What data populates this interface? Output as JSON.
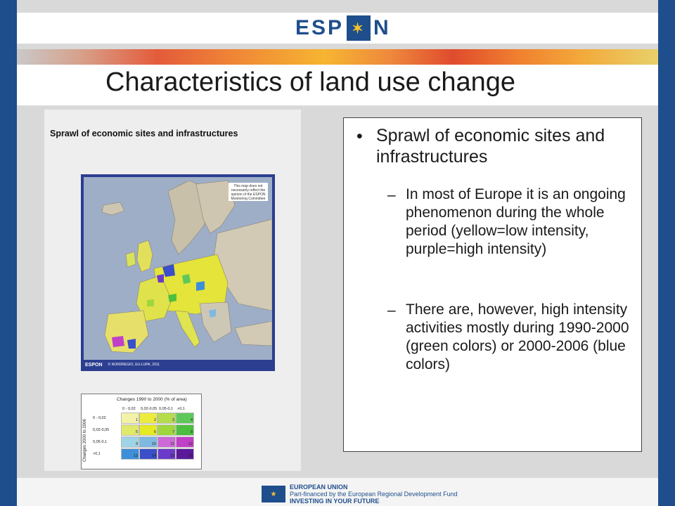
{
  "header": {
    "logo_left": "ESP",
    "logo_right": "N",
    "logo_icon": "eu-stars-icon"
  },
  "slide": {
    "title": "Characteristics of land use change"
  },
  "map_image": {
    "title": "Sprawl of economic sites and infrastructures",
    "note": "This map does not necessarily reflect the opinion of the ESPON Monitoring Committee",
    "logo": "ESPON",
    "credit": "© NORDREGIO, EU-LUPA, 2011",
    "legend": {
      "col_title": "Changes 1990 to 2000 (% of area)",
      "row_title": "Changes 2000 to 2006",
      "col_headers": [
        "0 - 0,02",
        "0,02-0,05",
        "0,05-0,1",
        ">0,1"
      ],
      "row_headers": [
        "0 - 0,02",
        "0,02-0,05",
        "0,05-0,1",
        ">0,1"
      ],
      "cells": [
        [
          "1",
          "2",
          "3",
          "4"
        ],
        [
          "5",
          "6",
          "7",
          "8"
        ],
        [
          "9",
          "10",
          "11",
          "12"
        ],
        [
          "13",
          "14",
          "15",
          "16"
        ]
      ],
      "colors": [
        [
          "#f3f2a6",
          "#ecec3e",
          "#b4dc4c",
          "#5ec95a"
        ],
        [
          "#dfe96a",
          "#e6ea22",
          "#9fd63c",
          "#4cbf3e"
        ],
        [
          "#9fd3e6",
          "#7fb8e0",
          "#cc6bd8",
          "#c040c8"
        ],
        [
          "#3d8fd8",
          "#3a4fc8",
          "#6a3ac8",
          "#5a1a9a"
        ]
      ]
    }
  },
  "content": {
    "bullet": "Sprawl of economic sites and infrastructures",
    "sub_bullets": [
      "In most of Europe it is an ongoing phenomenon during the whole period (yellow=low intensity, purple=high intensity)",
      "There are, however, high intensity activities mostly during 1990-2000 (green colors) or 2000-2006 (blue colors)"
    ]
  },
  "footer": {
    "eu_line1": "EUROPEAN UNION",
    "eu_line2": "Part-financed by the European Regional Development Fund",
    "eu_line3": "INVESTING IN YOUR FUTURE"
  }
}
